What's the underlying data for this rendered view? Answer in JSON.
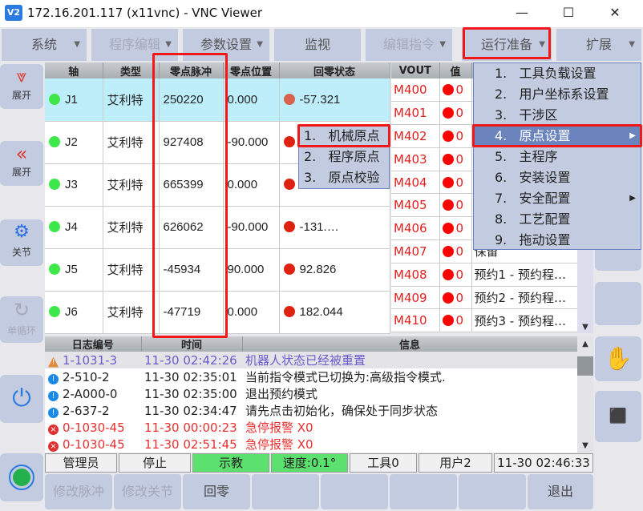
{
  "window": {
    "title": "172.16.201.117 (x11vnc) - VNC Viewer",
    "logo": "V2",
    "minimize": "—",
    "maximize": "☐",
    "close": "✕"
  },
  "menubar": [
    {
      "label": "系统",
      "caret": true,
      "disabled": false
    },
    {
      "label": "程序编辑",
      "caret": true,
      "disabled": true
    },
    {
      "label": "参数设置",
      "caret": true,
      "disabled": false
    },
    {
      "label": "监视",
      "caret": false,
      "disabled": false
    },
    {
      "label": "编辑指令",
      "caret": true,
      "disabled": true
    },
    {
      "label": "运行准备",
      "caret": true,
      "disabled": false
    },
    {
      "label": "扩展",
      "caret": true,
      "disabled": false
    }
  ],
  "sidebar": {
    "expand1": "展开",
    "expand2": "展开",
    "joint": "关节",
    "cycle": "单循环"
  },
  "joint_table": {
    "headers": [
      "轴",
      "类型",
      "零点脉冲",
      "零点位置",
      "回零状态"
    ],
    "rows": [
      {
        "axis": "J1",
        "type": "艾利特",
        "pulse": "250220",
        "pos": "0.000",
        "status": "-57.321",
        "status_color": "#d9634f"
      },
      {
        "axis": "J2",
        "type": "艾利特",
        "pulse": "927408",
        "pos": "-90.000",
        "status": "",
        "status_color": "#dd2211"
      },
      {
        "axis": "J3",
        "type": "艾利特",
        "pulse": "665399",
        "pos": "0.000",
        "status": "",
        "status_color": "#dd2211"
      },
      {
        "axis": "J4",
        "type": "艾利特",
        "pulse": "626062",
        "pos": "-90.000",
        "status": "-131.…",
        "status_color": "#dd2211"
      },
      {
        "axis": "J5",
        "type": "艾利特",
        "pulse": "-45934",
        "pos": "90.000",
        "status": "92.826",
        "status_color": "#dd2211"
      },
      {
        "axis": "J6",
        "type": "艾利特",
        "pulse": "-47719",
        "pos": "0.000",
        "status": "182.044",
        "status_color": "#dd2211"
      }
    ]
  },
  "vout_table": {
    "headers": [
      "VOUT",
      "值",
      ""
    ],
    "rows": [
      {
        "name": "M400",
        "value": "0",
        "desc": ""
      },
      {
        "name": "M401",
        "value": "0",
        "desc": ""
      },
      {
        "name": "M402",
        "value": "0",
        "desc": ""
      },
      {
        "name": "M403",
        "value": "0",
        "desc": ""
      },
      {
        "name": "M404",
        "value": "0",
        "desc": ""
      },
      {
        "name": "M405",
        "value": "0",
        "desc": ""
      },
      {
        "name": "M406",
        "value": "0",
        "desc": ""
      },
      {
        "name": "M407",
        "value": "0",
        "desc": "保留"
      },
      {
        "name": "M408",
        "value": "0",
        "desc": "预约1 - 预约程…"
      },
      {
        "name": "M409",
        "value": "0",
        "desc": "预约2 - 预约程…"
      },
      {
        "name": "M410",
        "value": "0",
        "desc": "预约3 - 预约程…"
      }
    ]
  },
  "log_table": {
    "headers": [
      "日志编号",
      "时间",
      "信息"
    ],
    "rows": [
      {
        "level": "warning",
        "id": "1-1031-3",
        "time": "11-30 02:42:26",
        "msg": "机器人状态已经被重置"
      },
      {
        "level": "info",
        "id": "2-510-2",
        "time": "11-30 02:35:01",
        "msg": "当前指令模式已切换为:高级指令模式."
      },
      {
        "level": "info",
        "id": "2-A000-0",
        "time": "11-30 02:35:00",
        "msg": "退出预约模式"
      },
      {
        "level": "info",
        "id": "2-637-2",
        "time": "11-30 02:34:47",
        "msg": "请先点击初始化，确保处于同步状态"
      },
      {
        "level": "error",
        "id": "0-1030-45",
        "time": "11-30 00:00:23",
        "msg": "急停报警 X0"
      },
      {
        "level": "error",
        "id": "0-1030-45",
        "time": "11-30 02:51:45",
        "msg": "急停报警 X0"
      }
    ]
  },
  "statusbar": {
    "user": "管理员",
    "state": "停止",
    "mode": "示教",
    "speed": "速度:0.1°",
    "tool": "工具0",
    "coord": "用户2",
    "clock": "11-30 02:46:33"
  },
  "bottom_buttons": [
    {
      "label": "修改脉冲",
      "disabled": true
    },
    {
      "label": "修改关节",
      "disabled": true
    },
    {
      "label": "回零",
      "disabled": false
    },
    {
      "label": "",
      "disabled": false
    },
    {
      "label": "",
      "disabled": false
    },
    {
      "label": "",
      "disabled": false
    },
    {
      "label": "",
      "disabled": false
    },
    {
      "label": "退出",
      "disabled": false
    }
  ],
  "dropdown": {
    "items": [
      "1.   工具负载设置",
      "2.   用户坐标系设置",
      "3.   干涉区",
      "4.   原点设置",
      "5.   主程序",
      "6.   安装设置",
      "7.   安全配置",
      "8.   工艺配置",
      "9.   拖动设置"
    ],
    "highlighted": "4.   原点设置"
  },
  "submenu": {
    "items": [
      "1.   机械原点",
      "2.   程序原点",
      "3.   原点校验"
    ]
  },
  "colors": {
    "panel": "#c3cbe0",
    "highlight": "#6b84bd",
    "selected_row": "#bdeefa",
    "teach_green": "#5ce06e",
    "alarm_red": "#e02020",
    "annotation_red": "#f01818"
  }
}
